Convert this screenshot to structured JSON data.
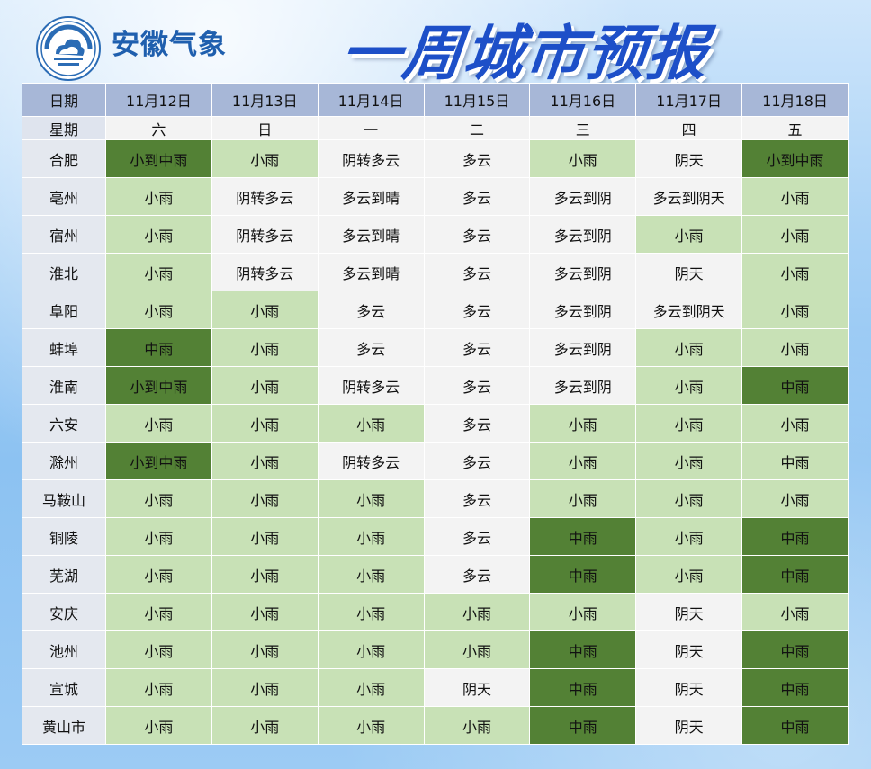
{
  "header": {
    "brand": "安徽气象",
    "title": "一周城市预报"
  },
  "colors": {
    "light_green": "#c8e1b6",
    "dark_green": "#538135",
    "plain": "#f3f3f3",
    "header_blue": "#a7b7d7"
  },
  "table": {
    "date_label": "日期",
    "week_label": "星期",
    "dates": [
      "11月12日",
      "11月13日",
      "11月14日",
      "11月15日",
      "11月16日",
      "11月17日",
      "11月18日"
    ],
    "weekdays": [
      "六",
      "日",
      "一",
      "二",
      "三",
      "四",
      "五"
    ],
    "rows": [
      {
        "city": "合肥",
        "cells": [
          [
            "小到中雨",
            "dark"
          ],
          [
            "小雨",
            "light"
          ],
          [
            "阴转多云",
            "plain"
          ],
          [
            "多云",
            "plain"
          ],
          [
            "小雨",
            "light"
          ],
          [
            "阴天",
            "plain"
          ],
          [
            "小到中雨",
            "dark"
          ]
        ]
      },
      {
        "city": "亳州",
        "cells": [
          [
            "小雨",
            "light"
          ],
          [
            "阴转多云",
            "plain"
          ],
          [
            "多云到晴",
            "plain"
          ],
          [
            "多云",
            "plain"
          ],
          [
            "多云到阴",
            "plain"
          ],
          [
            "多云到阴天",
            "plain"
          ],
          [
            "小雨",
            "light"
          ]
        ]
      },
      {
        "city": "宿州",
        "cells": [
          [
            "小雨",
            "light"
          ],
          [
            "阴转多云",
            "plain"
          ],
          [
            "多云到晴",
            "plain"
          ],
          [
            "多云",
            "plain"
          ],
          [
            "多云到阴",
            "plain"
          ],
          [
            "小雨",
            "light"
          ],
          [
            "小雨",
            "light"
          ]
        ]
      },
      {
        "city": "淮北",
        "cells": [
          [
            "小雨",
            "light"
          ],
          [
            "阴转多云",
            "plain"
          ],
          [
            "多云到晴",
            "plain"
          ],
          [
            "多云",
            "plain"
          ],
          [
            "多云到阴",
            "plain"
          ],
          [
            "阴天",
            "plain"
          ],
          [
            "小雨",
            "light"
          ]
        ]
      },
      {
        "city": "阜阳",
        "cells": [
          [
            "小雨",
            "light"
          ],
          [
            "小雨",
            "light"
          ],
          [
            "多云",
            "plain"
          ],
          [
            "多云",
            "plain"
          ],
          [
            "多云到阴",
            "plain"
          ],
          [
            "多云到阴天",
            "plain"
          ],
          [
            "小雨",
            "light"
          ]
        ]
      },
      {
        "city": "蚌埠",
        "cells": [
          [
            "中雨",
            "dark"
          ],
          [
            "小雨",
            "light"
          ],
          [
            "多云",
            "plain"
          ],
          [
            "多云",
            "plain"
          ],
          [
            "多云到阴",
            "plain"
          ],
          [
            "小雨",
            "light"
          ],
          [
            "小雨",
            "light"
          ]
        ]
      },
      {
        "city": "淮南",
        "cells": [
          [
            "小到中雨",
            "dark"
          ],
          [
            "小雨",
            "light"
          ],
          [
            "阴转多云",
            "plain"
          ],
          [
            "多云",
            "plain"
          ],
          [
            "多云到阴",
            "plain"
          ],
          [
            "小雨",
            "light"
          ],
          [
            "中雨",
            "dark"
          ]
        ]
      },
      {
        "city": "六安",
        "cells": [
          [
            "小雨",
            "light"
          ],
          [
            "小雨",
            "light"
          ],
          [
            "小雨",
            "light"
          ],
          [
            "多云",
            "plain"
          ],
          [
            "小雨",
            "light"
          ],
          [
            "小雨",
            "light"
          ],
          [
            "小雨",
            "light"
          ]
        ]
      },
      {
        "city": "滁州",
        "cells": [
          [
            "小到中雨",
            "dark"
          ],
          [
            "小雨",
            "light"
          ],
          [
            "阴转多云",
            "plain"
          ],
          [
            "多云",
            "plain"
          ],
          [
            "小雨",
            "light"
          ],
          [
            "小雨",
            "light"
          ],
          [
            "中雨",
            "light"
          ]
        ]
      },
      {
        "city": "马鞍山",
        "cells": [
          [
            "小雨",
            "light"
          ],
          [
            "小雨",
            "light"
          ],
          [
            "小雨",
            "light"
          ],
          [
            "多云",
            "plain"
          ],
          [
            "小雨",
            "light"
          ],
          [
            "小雨",
            "light"
          ],
          [
            "小雨",
            "light"
          ]
        ]
      },
      {
        "city": "铜陵",
        "cells": [
          [
            "小雨",
            "light"
          ],
          [
            "小雨",
            "light"
          ],
          [
            "小雨",
            "light"
          ],
          [
            "多云",
            "plain"
          ],
          [
            "中雨",
            "dark"
          ],
          [
            "小雨",
            "light"
          ],
          [
            "中雨",
            "dark"
          ]
        ]
      },
      {
        "city": "芜湖",
        "cells": [
          [
            "小雨",
            "light"
          ],
          [
            "小雨",
            "light"
          ],
          [
            "小雨",
            "light"
          ],
          [
            "多云",
            "plain"
          ],
          [
            "中雨",
            "dark"
          ],
          [
            "小雨",
            "light"
          ],
          [
            "中雨",
            "dark"
          ]
        ]
      },
      {
        "city": "安庆",
        "cells": [
          [
            "小雨",
            "light"
          ],
          [
            "小雨",
            "light"
          ],
          [
            "小雨",
            "light"
          ],
          [
            "小雨",
            "light"
          ],
          [
            "小雨",
            "light"
          ],
          [
            "阴天",
            "plain"
          ],
          [
            "小雨",
            "light"
          ]
        ]
      },
      {
        "city": "池州",
        "cells": [
          [
            "小雨",
            "light"
          ],
          [
            "小雨",
            "light"
          ],
          [
            "小雨",
            "light"
          ],
          [
            "小雨",
            "light"
          ],
          [
            "中雨",
            "dark"
          ],
          [
            "阴天",
            "plain"
          ],
          [
            "中雨",
            "dark"
          ]
        ]
      },
      {
        "city": "宣城",
        "cells": [
          [
            "小雨",
            "light"
          ],
          [
            "小雨",
            "light"
          ],
          [
            "小雨",
            "light"
          ],
          [
            "阴天",
            "plain"
          ],
          [
            "中雨",
            "dark"
          ],
          [
            "阴天",
            "plain"
          ],
          [
            "中雨",
            "dark"
          ]
        ]
      },
      {
        "city": "黄山市",
        "cells": [
          [
            "小雨",
            "light"
          ],
          [
            "小雨",
            "light"
          ],
          [
            "小雨",
            "light"
          ],
          [
            "小雨",
            "light"
          ],
          [
            "中雨",
            "dark"
          ],
          [
            "阴天",
            "plain"
          ],
          [
            "中雨",
            "dark"
          ]
        ]
      }
    ]
  }
}
